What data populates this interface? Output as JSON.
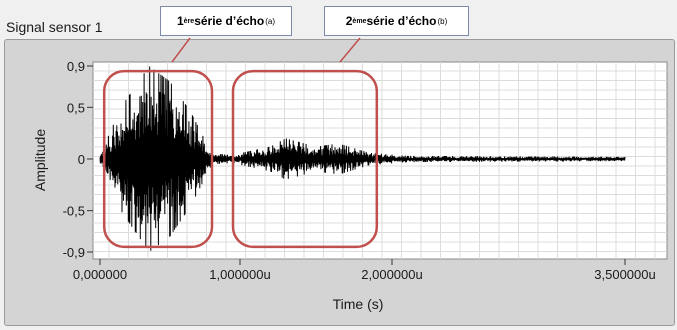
{
  "window": {
    "title": "Signal sensor 1"
  },
  "callouts": [
    {
      "num": "1",
      "sup": "ère",
      "text": " série d’écho",
      "tag": "(a)"
    },
    {
      "num": "2",
      "sup": "ème",
      "text": " série d’écho",
      "tag": "(b)"
    }
  ],
  "colors": {
    "background": "#f0f0f0",
    "frame": "#d4d4d4",
    "plot": "#ffffff",
    "grid": "#dcdcdc",
    "signal": "#000000",
    "highlight": "#c0504d"
  },
  "chart_data": {
    "type": "line",
    "title": "",
    "xlabel": "Time (s)",
    "ylabel": "Amplitude",
    "xlim": [
      0,
      3.5
    ],
    "ylim": [
      -0.9,
      0.9
    ],
    "x_unit_note": "u",
    "x_ticks": [
      {
        "value": 0,
        "label": "0,000000"
      },
      {
        "value": 1,
        "label": "1,000000u"
      },
      {
        "value": 2,
        "label": "2,000000u"
      },
      {
        "value": 3.5,
        "label": "3,500000u"
      }
    ],
    "y_ticks": [
      {
        "value": 0.9,
        "label": "0,9"
      },
      {
        "value": 0.5,
        "label": "0,5"
      },
      {
        "value": 0,
        "label": "0"
      },
      {
        "value": -0.5,
        "label": "-0,5"
      },
      {
        "value": -0.9,
        "label": "-0,9"
      }
    ],
    "grid": true,
    "series": [
      {
        "envelope": [
          {
            "x": 0.0,
            "amp": 0.04
          },
          {
            "x": 0.15,
            "amp": 0.5
          },
          {
            "x": 0.35,
            "amp": 0.9
          },
          {
            "x": 0.5,
            "amp": 0.75
          },
          {
            "x": 0.65,
            "amp": 0.45
          },
          {
            "x": 0.8,
            "amp": 0.05
          },
          {
            "x": 0.95,
            "amp": 0.04
          },
          {
            "x": 1.2,
            "amp": 0.12
          },
          {
            "x": 1.3,
            "amp": 0.2
          },
          {
            "x": 1.5,
            "amp": 0.12
          },
          {
            "x": 1.65,
            "amp": 0.15
          },
          {
            "x": 1.85,
            "amp": 0.06
          },
          {
            "x": 2.1,
            "amp": 0.03
          },
          {
            "x": 3.5,
            "amp": 0.02
          }
        ]
      }
    ],
    "highlights": [
      {
        "x_start": 0.03,
        "x_end": 0.8,
        "y_top": 0.85,
        "y_bottom": -0.85,
        "tag": "(a)"
      },
      {
        "x_start": 0.95,
        "x_end": 1.9,
        "y_top": 0.85,
        "y_bottom": -0.85,
        "tag": "(b)"
      }
    ]
  }
}
